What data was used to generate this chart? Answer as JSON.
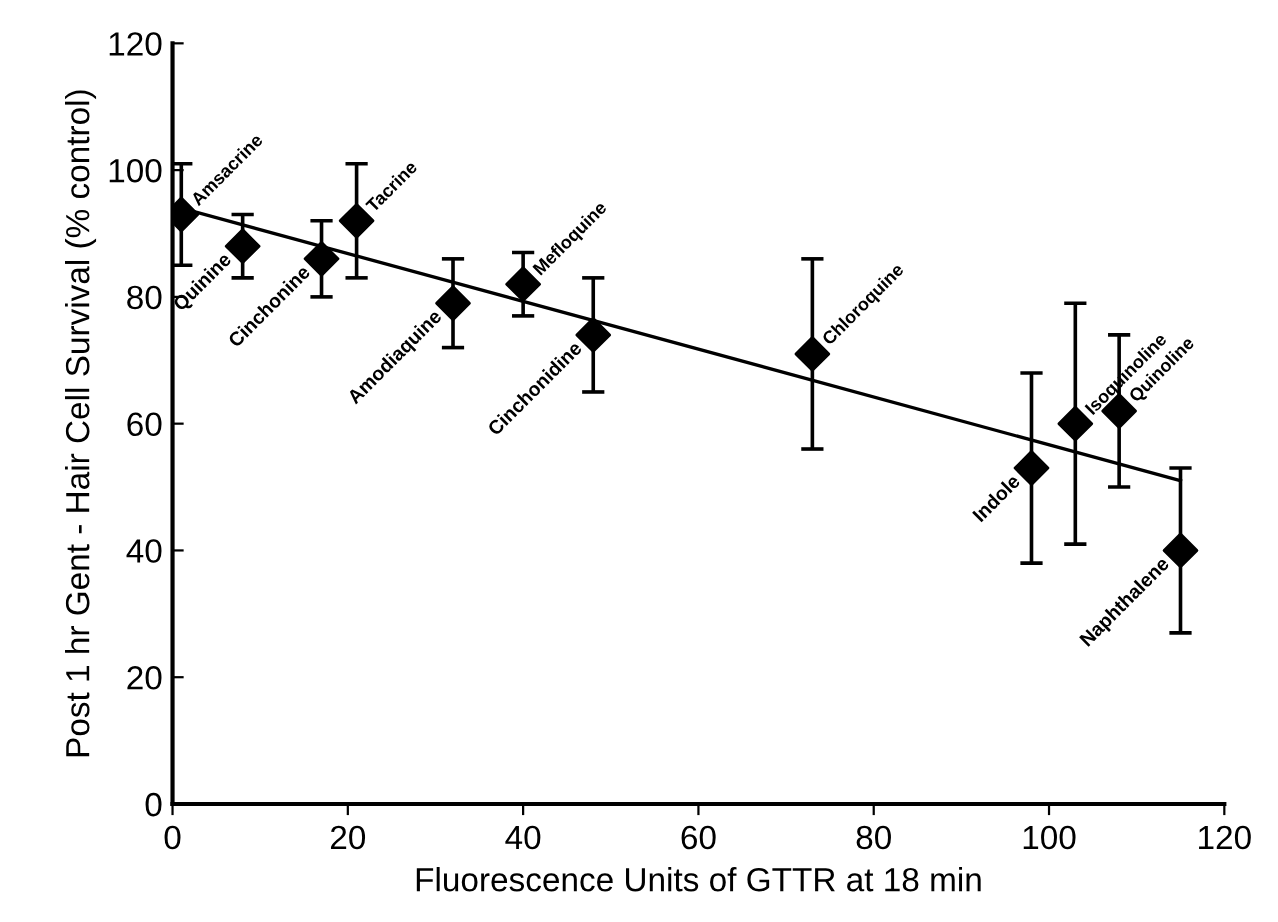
{
  "chart_data": {
    "type": "scatter",
    "xlabel": "Fluorescence Units of GTTR at 18 min",
    "ylabel": "Post 1 hr Gent - Hair Cell Survival (% control)",
    "xlim": [
      0,
      120
    ],
    "xticks": [
      0,
      20,
      40,
      60,
      80,
      100,
      120
    ],
    "ylim": [
      0,
      120
    ],
    "yticks": [
      0,
      20,
      40,
      60,
      80,
      100,
      120
    ],
    "grid": false,
    "series": [
      {
        "color": "#000000",
        "marker": "diamond",
        "x": [
          1,
          8,
          17,
          21,
          32,
          40,
          48,
          73,
          98,
          103,
          108,
          115
        ],
        "values": [
          93,
          88,
          86,
          92,
          79,
          82,
          74,
          71,
          53,
          60,
          62,
          40
        ],
        "errors": [
          [
            85,
            101
          ],
          [
            83,
            93
          ],
          [
            80,
            92
          ],
          [
            83,
            101
          ],
          [
            72,
            86
          ],
          [
            77,
            87
          ],
          [
            65,
            83
          ],
          [
            56,
            86
          ],
          [
            38,
            68
          ],
          [
            41,
            79
          ],
          [
            50,
            74
          ],
          [
            27,
            53
          ]
        ]
      },
      {
        "type": "line",
        "color": "#000000",
        "marker": "none",
        "line_style": "solid",
        "x": [
          1,
          115
        ],
        "values": [
          94,
          51
        ]
      }
    ],
    "annotations": [
      {
        "text": "Amsacrine",
        "x": 1,
        "y": 93
      },
      {
        "text": "Quinine",
        "x": 8,
        "y": 88
      },
      {
        "text": "Cinchonine",
        "x": 17,
        "y": 86
      },
      {
        "text": "Tacrine",
        "x": 21,
        "y": 92
      },
      {
        "text": "Amodiaquine",
        "x": 32,
        "y": 79
      },
      {
        "text": "Mefloquine",
        "x": 40,
        "y": 82
      },
      {
        "text": "Cinchonidine",
        "x": 48,
        "y": 74
      },
      {
        "text": "Chloroquine",
        "x": 73,
        "y": 71
      },
      {
        "text": "Indole",
        "x": 98,
        "y": 53
      },
      {
        "text": "Isoquinoline",
        "x": 103,
        "y": 60
      },
      {
        "text": "Quinoline",
        "x": 108,
        "y": 62
      },
      {
        "text": "Naphthalene",
        "x": 115,
        "y": 40
      }
    ]
  }
}
